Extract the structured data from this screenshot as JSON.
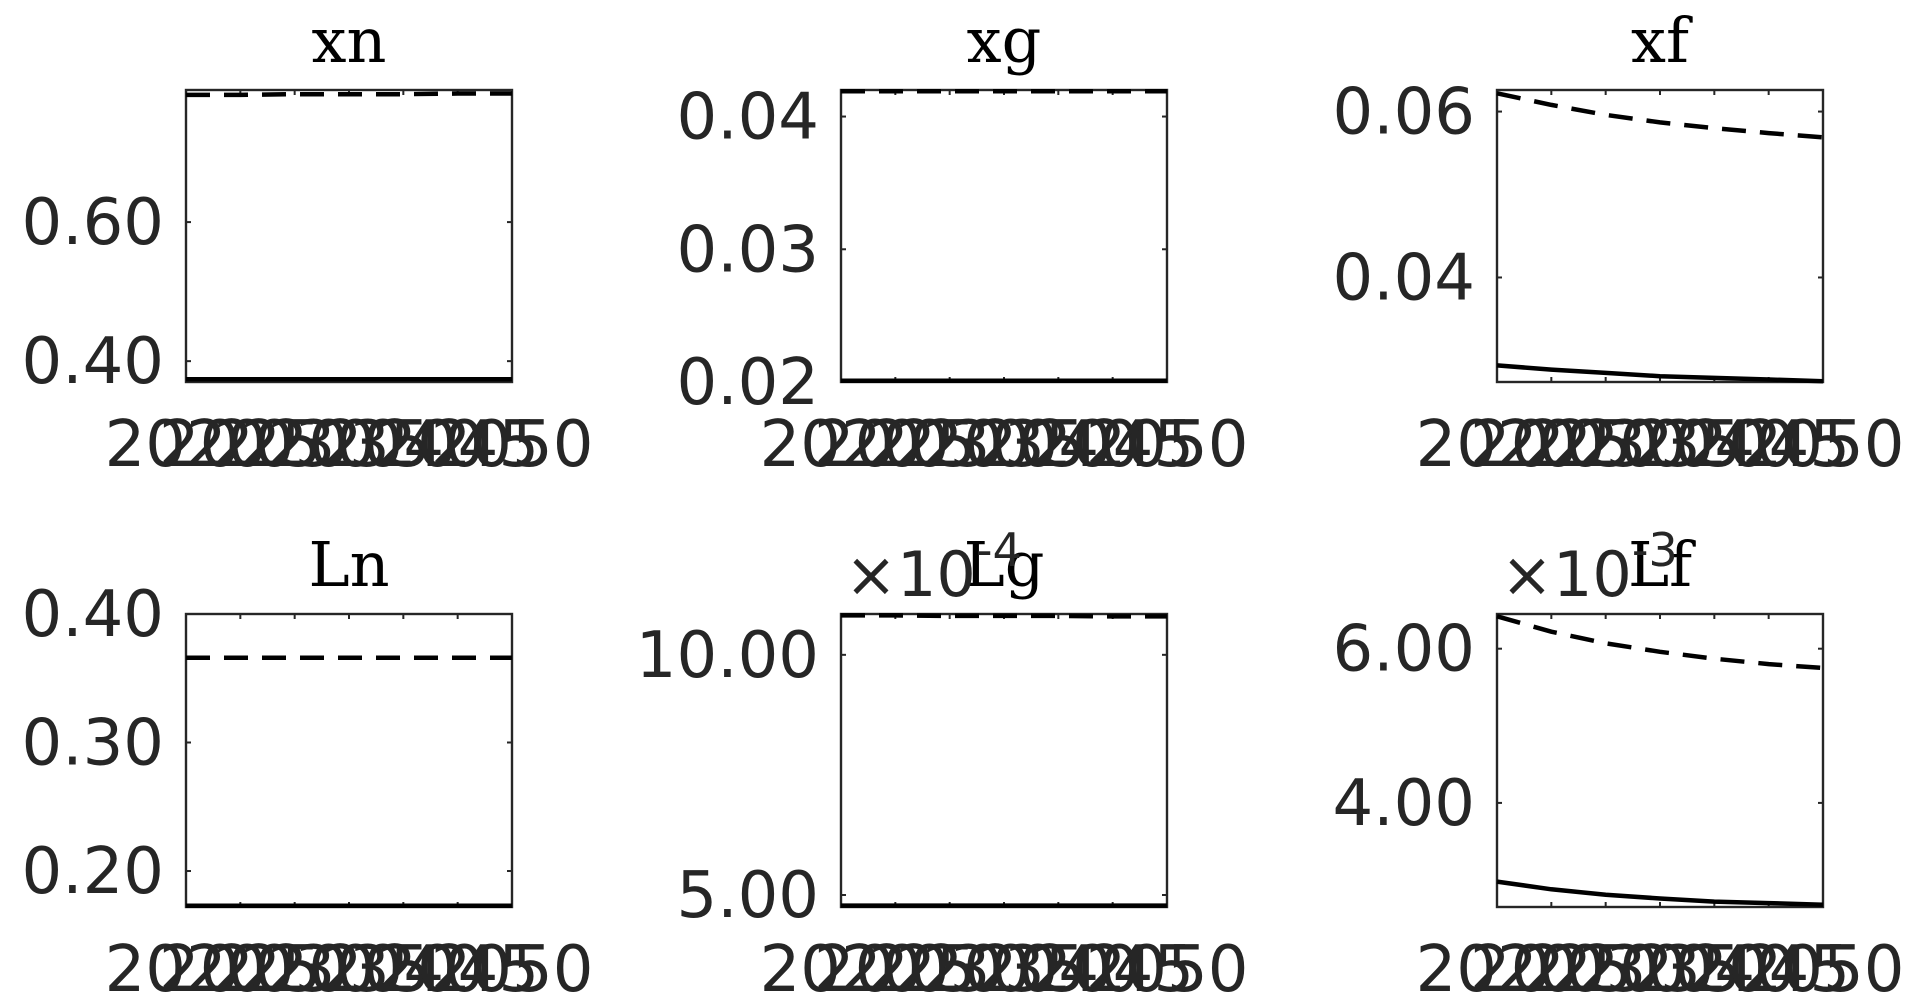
{
  "figure": {
    "layout": "2x3 subplots"
  },
  "chart_data": [
    {
      "type": "line",
      "title": "xn",
      "x": [
        2020,
        2025,
        2030,
        2035,
        2040,
        2045,
        2050
      ],
      "xticklabels": [
        "2020",
        "2025",
        "2030",
        "2035",
        "2040",
        "2045",
        "2050"
      ],
      "xlim": [
        2020,
        2050
      ],
      "ylim": [
        0.37,
        0.79
      ],
      "yticks": [
        0.4,
        0.6
      ],
      "yticklabels": [
        "0.40",
        "0.60"
      ],
      "multiplier": "",
      "series": [
        {
          "style": "dashed",
          "values": [
            0.783,
            0.783,
            0.784,
            0.784,
            0.784,
            0.785,
            0.785
          ]
        },
        {
          "style": "solid",
          "values": [
            0.374,
            0.374,
            0.374,
            0.374,
            0.374,
            0.374,
            0.374
          ]
        }
      ]
    },
    {
      "type": "line",
      "title": "xg",
      "x": [
        2020,
        2025,
        2030,
        2035,
        2040,
        2045,
        2050
      ],
      "xticklabels": [
        "2020",
        "2025",
        "2030",
        "2035",
        "2040",
        "2045",
        "2050"
      ],
      "xlim": [
        2020,
        2050
      ],
      "ylim": [
        0.02,
        0.042
      ],
      "yticks": [
        0.02,
        0.03,
        0.04
      ],
      "yticklabels": [
        "0.02",
        "0.03",
        "0.04"
      ],
      "multiplier": "",
      "series": [
        {
          "style": "dashed",
          "values": [
            0.0419,
            0.0419,
            0.0419,
            0.0419,
            0.0419,
            0.0419,
            0.0419
          ]
        },
        {
          "style": "solid",
          "values": [
            0.0201,
            0.0201,
            0.0201,
            0.0201,
            0.0201,
            0.0201,
            0.0201
          ]
        }
      ]
    },
    {
      "type": "line",
      "title": "xf",
      "x": [
        2020,
        2025,
        2030,
        2035,
        2040,
        2045,
        2050
      ],
      "xticklabels": [
        "2020",
        "2025",
        "2030",
        "2035",
        "2040",
        "2045",
        "2050"
      ],
      "xlim": [
        2020,
        2050
      ],
      "ylim": [
        0.0274,
        0.0626
      ],
      "yticks": [
        0.04,
        0.06
      ],
      "yticklabels": [
        "0.04",
        "0.06"
      ],
      "multiplier": "",
      "series": [
        {
          "style": "dashed",
          "values": [
            0.0622,
            0.0608,
            0.0596,
            0.0587,
            0.058,
            0.0574,
            0.0569
          ]
        },
        {
          "style": "solid",
          "values": [
            0.0294,
            0.0289,
            0.0285,
            0.0281,
            0.0279,
            0.0277,
            0.0275
          ]
        }
      ]
    },
    {
      "type": "line",
      "title": "Ln",
      "x": [
        2020,
        2025,
        2030,
        2035,
        2040,
        2045,
        2050
      ],
      "xticklabels": [
        "2020",
        "2025",
        "2030",
        "2035",
        "2040",
        "2045",
        "2050"
      ],
      "xlim": [
        2020,
        2050
      ],
      "ylim": [
        0.172,
        0.4
      ],
      "yticks": [
        0.2,
        0.3,
        0.4
      ],
      "yticklabels": [
        "0.20",
        "0.30",
        "0.40"
      ],
      "multiplier": "",
      "series": [
        {
          "style": "dashed",
          "values": [
            0.366,
            0.366,
            0.366,
            0.366,
            0.366,
            0.366,
            0.366
          ]
        },
        {
          "style": "solid",
          "values": [
            0.173,
            0.173,
            0.173,
            0.173,
            0.173,
            0.173,
            0.173
          ]
        }
      ]
    },
    {
      "type": "line",
      "title": "Lg",
      "x": [
        2020,
        2025,
        2030,
        2035,
        2040,
        2045,
        2050
      ],
      "xticklabels": [
        "2020",
        "2025",
        "2030",
        "2035",
        "2040",
        "2045",
        "2050"
      ],
      "xlim": [
        2020,
        2050
      ],
      "ylim": [
        4.75,
        10.85
      ],
      "yticks": [
        5.0,
        10.0
      ],
      "yticklabels": [
        "5.00",
        "10.00"
      ],
      "multiplier": "×10-4",
      "series": [
        {
          "style": "dashed",
          "values": [
            10.82,
            10.82,
            10.81,
            10.81,
            10.81,
            10.8,
            10.8
          ]
        },
        {
          "style": "solid",
          "values": [
            4.78,
            4.78,
            4.78,
            4.78,
            4.78,
            4.78,
            4.78
          ]
        }
      ]
    },
    {
      "type": "line",
      "title": "Lf",
      "x": [
        2020,
        2025,
        2030,
        2035,
        2040,
        2045,
        2050
      ],
      "xticklabels": [
        "2020",
        "2025",
        "2030",
        "2035",
        "2040",
        "2045",
        "2050"
      ],
      "xlim": [
        2020,
        2050
      ],
      "ylim": [
        2.65,
        6.45
      ],
      "yticks": [
        4.0,
        6.0
      ],
      "yticklabels": [
        "4.00",
        "6.00"
      ],
      "multiplier": "×10-3",
      "series": [
        {
          "style": "dashed",
          "values": [
            6.42,
            6.22,
            6.07,
            5.96,
            5.87,
            5.8,
            5.75
          ]
        },
        {
          "style": "solid",
          "values": [
            2.98,
            2.88,
            2.81,
            2.76,
            2.72,
            2.7,
            2.68
          ]
        }
      ]
    }
  ]
}
